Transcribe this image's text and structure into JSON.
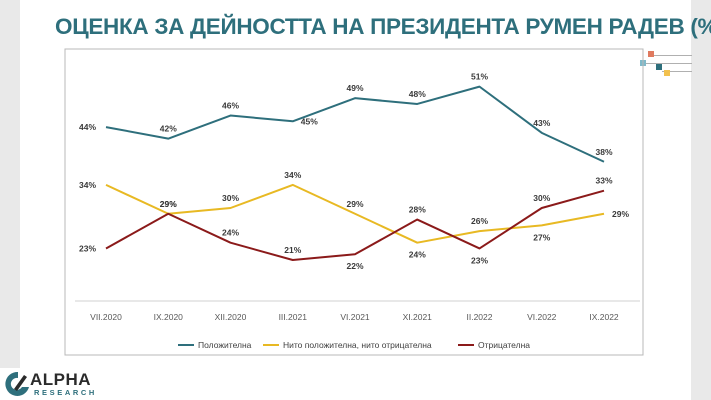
{
  "title": "ОЦЕНКА ЗА ДЕЙНОСТТА НА ПРЕЗИДЕНТА РУМЕН РАДЕВ (%)",
  "logo": {
    "name": "ALPHA",
    "sub": "RESEARCH"
  },
  "colors": {
    "title": "#2e6f7c",
    "deco": [
      "#e07a5f",
      "#7fb9c9",
      "#2e6f7c",
      "#f2c14e",
      "#b0b0b0"
    ]
  },
  "chart_data": {
    "type": "line",
    "categories": [
      "VII.2020",
      "IX.2020",
      "XII.2020",
      "III.2021",
      "VI.2021",
      "XI.2021",
      "II.2022",
      "VI.2022",
      "IX.2022"
    ],
    "ylim": [
      0,
      60
    ],
    "grid": false,
    "legend_position": "bottom",
    "series": [
      {
        "name": "Положителна",
        "color": "#2e6f7c",
        "values": [
          44,
          42,
          46,
          45,
          49,
          48,
          51,
          43,
          38
        ],
        "labels_pos": [
          "above",
          "above",
          "above",
          "right",
          "above",
          "above",
          "above",
          "above",
          "above"
        ]
      },
      {
        "name": "Нито положителна, нито отрицателна",
        "color": "#e8b923",
        "values": [
          34,
          29,
          30,
          34,
          29,
          24,
          26,
          27,
          29
        ],
        "labels_pos": [
          "above",
          "above",
          "above",
          "above",
          "above",
          "below",
          "above",
          "below",
          "right"
        ]
      },
      {
        "name": "Отрицателна",
        "color": "#8b1a1a",
        "values": [
          23,
          29,
          24,
          21,
          22,
          28,
          23,
          30,
          33
        ],
        "labels_pos": [
          "above",
          "above",
          "above",
          "above",
          "below",
          "above",
          "below",
          "above",
          "above"
        ]
      }
    ]
  }
}
